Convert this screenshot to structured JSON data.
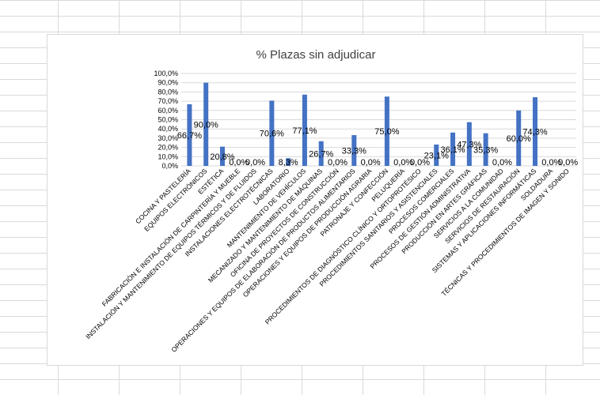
{
  "colors": {
    "bar": "#4472c4",
    "gridline": "#d9d9d9",
    "sheet_grid": "#dadada",
    "text": "#404040",
    "label": "#000000"
  },
  "chart_data": {
    "type": "bar",
    "title": "% Plazas sin adjudicar",
    "ylim": [
      0,
      100
    ],
    "y_ticks": [
      "0,0%",
      "10,0%",
      "20,0%",
      "30,0%",
      "40,0%",
      "50,0%",
      "60,0%",
      "70,0%",
      "80,0%",
      "90,0%",
      "100,0%"
    ],
    "grid": true,
    "legend": "none",
    "categories": [
      "COCINA Y PASTELERÍA",
      "EQUIPOS ELECTRÓNICOS",
      "ESTÉTICA",
      "FABRICACIÓN E INSTALACIÓN DE CARPINTERÍA Y MUEBLE",
      "INSTALACIÓN Y MANTENIMIENTO DE EQUIPOS TÉRMICOS Y DE FLUIDOS",
      "INSTALACIONES ELECTROTÉCNICAS",
      "LABORATORIO",
      "MANTENIMIENTO DE VEHÍCULOS",
      "MECANIZADO Y MANTENIMIENTO DE MÁQUINAS",
      "OFICINA DE PROYECTOS DE CONSTRUCCIÓN",
      "OPERACIONES Y EQUIPOS DE ELABORACIÓN DE PRODUCTOS ALIMENTARIOS",
      "OPERACIONES Y EQUIPOS DE PRODUCCIÓN AGRARIA",
      "PATRONAJE Y CONFECCIÓN",
      "PELUQUERÍA",
      "PROCEDIMIENTOS DE DIAGNÓSTICO CLÍNICO Y ORTOPROTÉSICO",
      "PROCEDIMIENTOS SANITARIOS Y ASISTENCIALES",
      "PROCESOS COMERCIALES",
      "PROCESOS DE GESTIÓN ADMINISTRATIVA",
      "PRODUCCIÓN EN ARTES GRÁFICAS",
      "SERVICIOS A LA COMUNIDAD",
      "SERVICIOS DE RESTAURACIÓN",
      "SISTEMAS Y APLICACIONES INFORMÁTICAS",
      "SOLDADURA",
      "TÉCNICAS Y PROCEDIMIENTOS DE IMAGEN Y SONIDO"
    ],
    "values": [
      66.7,
      90.0,
      20.8,
      0.0,
      0.0,
      70.6,
      8.3,
      77.1,
      26.7,
      0.0,
      33.3,
      0.0,
      75.0,
      0.0,
      0.0,
      23.1,
      36.1,
      47.3,
      35.3,
      0.0,
      60.0,
      74.3,
      0.0,
      0.0
    ],
    "data_labels": [
      "66,7%",
      "90,0%",
      "20,8%",
      "0,0%",
      "0,0%",
      "70,6%",
      "8,3%",
      "77,1%",
      "26,7%",
      "0,0%",
      "33,3%",
      "0,0%",
      "75,0%",
      "0,0%",
      "0,0%",
      "23,1%",
      "36,1%",
      "47,3%",
      "35,3%",
      "0,0%",
      "60,0%",
      "74,3%",
      "0,0%",
      "0,0%"
    ]
  }
}
